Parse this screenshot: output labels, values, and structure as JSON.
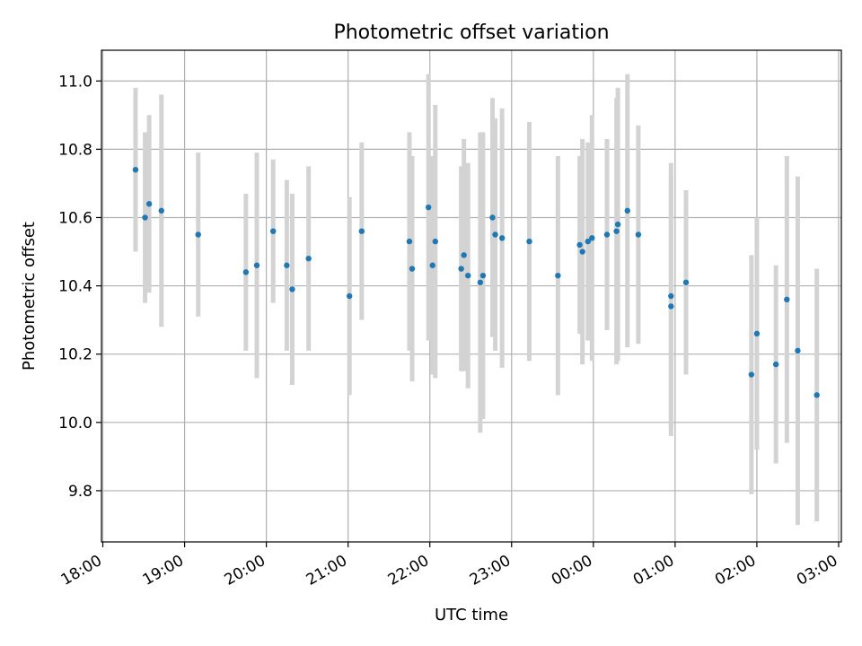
{
  "chart_data": {
    "type": "scatter",
    "title": "Photometric offset variation",
    "xlabel": "UTC time",
    "ylabel": "Photometric offset",
    "grid": true,
    "x_unit": "UTC time (HH:MM), observation night starting 18:00 and continuing past midnight",
    "xlim": [
      "17:59",
      "03:02"
    ],
    "ylim": [
      9.65,
      11.09
    ],
    "xticks": [
      "18:00",
      "19:00",
      "20:00",
      "21:00",
      "22:00",
      "23:00",
      "00:00",
      "01:00",
      "02:00",
      "03:00"
    ],
    "yticks": [
      "9.8",
      "10.0",
      "10.2",
      "10.4",
      "10.6",
      "10.8",
      "11.0"
    ],
    "colors": {
      "points": "#1f77b4",
      "errorbars": "#d3d3d3",
      "grid": "#b0b0b0"
    },
    "series": [
      {
        "x": [
          "18:24",
          "18:31",
          "18:34",
          "18:43",
          "19:10",
          "19:45",
          "19:53",
          "20:05",
          "20:15",
          "20:19",
          "20:31",
          "21:01",
          "21:10",
          "21:45",
          "21:47",
          "21:59",
          "22:02",
          "22:04",
          "22:23",
          "22:25",
          "22:28",
          "22:37",
          "22:39",
          "22:46",
          "22:48",
          "22:53",
          "23:13",
          "23:34",
          "23:50",
          "23:52",
          "23:56",
          "23:59",
          "00:10",
          "00:17",
          "00:18",
          "00:25",
          "00:33",
          "00:57",
          "00:57",
          "01:08",
          "01:56",
          "02:00",
          "02:14",
          "02:22",
          "02:30",
          "02:44"
        ],
        "y": [
          10.74,
          10.6,
          10.64,
          10.62,
          10.55,
          10.44,
          10.46,
          10.56,
          10.46,
          10.39,
          10.48,
          10.37,
          10.56,
          10.53,
          10.45,
          10.63,
          10.46,
          10.53,
          10.45,
          10.49,
          10.43,
          10.41,
          10.43,
          10.6,
          10.55,
          10.54,
          10.53,
          10.43,
          10.52,
          10.5,
          10.53,
          10.54,
          10.55,
          10.56,
          10.58,
          10.62,
          10.55,
          10.34,
          10.37,
          10.41,
          10.14,
          10.26,
          10.17,
          10.36,
          10.21,
          10.08
        ],
        "yerr": [
          0.24,
          0.25,
          0.26,
          0.34,
          0.24,
          0.23,
          0.33,
          0.21,
          0.25,
          0.28,
          0.27,
          0.29,
          0.26,
          0.32,
          0.33,
          0.39,
          0.32,
          0.4,
          0.3,
          0.34,
          0.33,
          0.44,
          0.42,
          0.35,
          0.34,
          0.38,
          0.35,
          0.35,
          0.26,
          0.33,
          0.29,
          0.36,
          0.28,
          0.39,
          0.4,
          0.4,
          0.32,
          0.38,
          0.39,
          0.27,
          0.35,
          0.34,
          0.29,
          0.42,
          0.51,
          0.37
        ]
      }
    ]
  }
}
